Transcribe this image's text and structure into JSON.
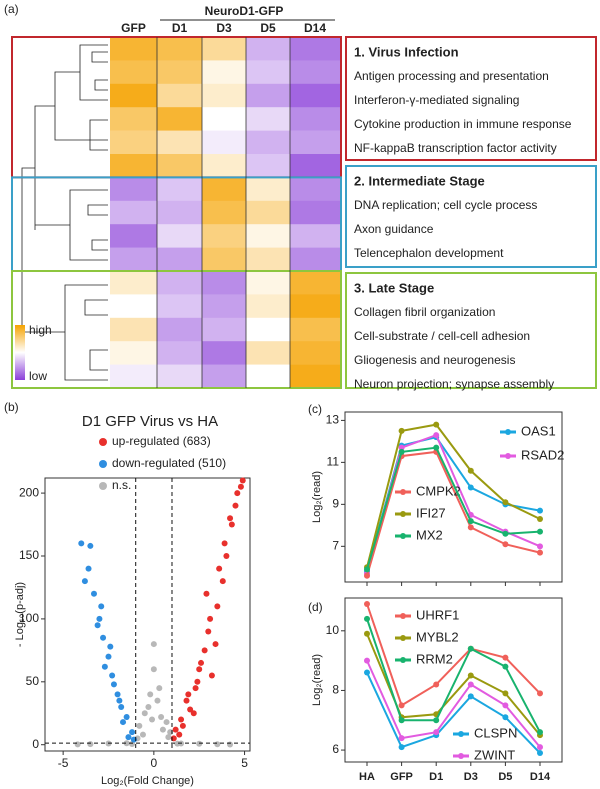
{
  "chart_data": [
    {
      "type": "heatmap",
      "panel_label": "(a)",
      "column_group": "NeuroD1-GFP",
      "columns": [
        "GFP",
        "D1",
        "D3",
        "D5",
        "D14"
      ],
      "legend": {
        "high": "high",
        "low": "low"
      },
      "colors": {
        "high": "#f5a300",
        "mid": "#ffffff",
        "low": "#8b3fd9"
      },
      "groups": [
        {
          "color": "#c1272d",
          "title": "1. Virus Infection",
          "terms": [
            "Antigen processing and presentation",
            "Interferon-γ-mediated signaling",
            "Cytokine production in immune response",
            "NF-kappaB transcription factor activity"
          ],
          "values": [
            [
              0.9,
              0.85,
              0.7,
              0.3,
              0.15
            ],
            [
              0.85,
              0.8,
              0.55,
              0.35,
              0.2
            ],
            [
              0.95,
              0.7,
              0.6,
              0.25,
              0.1
            ],
            [
              0.8,
              0.9,
              0.5,
              0.4,
              0.2
            ],
            [
              0.75,
              0.65,
              0.45,
              0.3,
              0.25
            ],
            [
              0.9,
              0.8,
              0.6,
              0.35,
              0.1
            ]
          ]
        },
        {
          "color": "#3aa0c8",
          "title": "2. Intermediate Stage",
          "terms": [
            "DNA replication; cell cycle process",
            "Axon guidance",
            "Telencephalon development"
          ],
          "values": [
            [
              0.2,
              0.35,
              0.9,
              0.6,
              0.2
            ],
            [
              0.3,
              0.3,
              0.85,
              0.7,
              0.15
            ],
            [
              0.15,
              0.4,
              0.75,
              0.55,
              0.3
            ],
            [
              0.25,
              0.25,
              0.8,
              0.65,
              0.2
            ]
          ]
        },
        {
          "color": "#8dc63f",
          "title": "3. Late Stage",
          "terms": [
            "Collagen fibril organization",
            "Cell-substrate / cell-cell adhesion",
            "Gliogenesis and neurogenesis",
            "Neuron projection; synapse assembly"
          ],
          "values": [
            [
              0.6,
              0.3,
              0.2,
              0.55,
              0.9
            ],
            [
              0.5,
              0.35,
              0.25,
              0.6,
              0.95
            ],
            [
              0.65,
              0.25,
              0.3,
              0.5,
              0.85
            ],
            [
              0.55,
              0.3,
              0.15,
              0.65,
              0.9
            ],
            [
              0.45,
              0.4,
              0.25,
              0.5,
              0.95
            ]
          ]
        }
      ]
    },
    {
      "type": "scatter",
      "panel_label": "(b)",
      "title": "D1 GFP Virus vs HA",
      "x_label": "Log₂(Fold Change)",
      "y_label": "- Log₁₀(p-adj)",
      "xlim": [
        -6,
        5.3
      ],
      "xticks": [
        -5,
        0,
        5
      ],
      "ylim": [
        -5,
        212
      ],
      "yticks": [
        0,
        50,
        100,
        150,
        200
      ],
      "thresholds": {
        "x": [
          -1,
          1
        ],
        "y": 1.3
      },
      "series": [
        {
          "name": "up-regulated (683)",
          "color": "#e8302c",
          "x": [
            1.2,
            1.5,
            1.8,
            2.0,
            2.3,
            2.5,
            2.8,
            3.0,
            3.2,
            3.5,
            3.8,
            4.0,
            4.3,
            4.6,
            4.9,
            1.4,
            1.9,
            2.2,
            2.6,
            3.1,
            3.4,
            3.9,
            4.5,
            1.1,
            1.6,
            2.4,
            2.9,
            3.6,
            4.2,
            4.8
          ],
          "values": [
            12,
            20,
            35,
            28,
            45,
            60,
            75,
            90,
            55,
            110,
            130,
            150,
            175,
            200,
            210,
            8,
            40,
            25,
            65,
            100,
            80,
            160,
            190,
            5,
            15,
            50,
            120,
            140,
            180,
            205
          ]
        },
        {
          "name": "down-regulated (510)",
          "color": "#2f8ee0",
          "x": [
            -1.2,
            -1.5,
            -1.8,
            -2.0,
            -2.3,
            -2.5,
            -2.8,
            -3.0,
            -3.3,
            -3.6,
            -4.0,
            -1.4,
            -1.9,
            -2.2,
            -2.7,
            -3.1,
            -3.5,
            -1.1,
            -1.7,
            -2.4,
            -2.9,
            -3.8
          ],
          "values": [
            10,
            22,
            30,
            40,
            55,
            70,
            85,
            100,
            120,
            140,
            160,
            6,
            35,
            48,
            62,
            95,
            158,
            4,
            18,
            78,
            110,
            130
          ]
        },
        {
          "name": "n.s.",
          "color": "#b8b8b8",
          "x": [
            -3.5,
            -2.5,
            -1.5,
            -0.8,
            -0.5,
            -0.2,
            0,
            0.2,
            0.4,
            0.7,
            0.9,
            1.5,
            2.5,
            3.5,
            -0.6,
            0.5,
            -0.9,
            0.8,
            -0.3,
            0.3,
            -4.2,
            4.2,
            -1.2,
            1.3,
            0,
            -0.1
          ],
          "values": [
            0.5,
            1,
            1.2,
            15,
            25,
            40,
            60,
            35,
            22,
            18,
            10,
            1,
            0.8,
            0.4,
            8,
            12,
            5,
            6,
            30,
            45,
            0.3,
            0.2,
            0.6,
            0.9,
            80,
            20
          ]
        }
      ]
    },
    {
      "type": "line",
      "panel_label": "(c)",
      "y_label": "Log₂(read)",
      "categories": [
        null,
        null,
        null,
        null,
        null,
        null
      ],
      "ylim": [
        5.3,
        13.4
      ],
      "yticks": [
        7,
        9,
        11,
        13
      ],
      "series": [
        {
          "name": "OAS1",
          "color": "#1ba7e0",
          "values": [
            5.8,
            11.8,
            12.2,
            9.8,
            9.0,
            8.7
          ]
        },
        {
          "name": "RSAD2",
          "color": "#e25be0",
          "values": [
            5.7,
            11.7,
            12.3,
            8.5,
            7.7,
            7.0
          ]
        },
        {
          "name": "CMPK2",
          "color": "#f0605a",
          "values": [
            5.6,
            11.3,
            11.5,
            7.9,
            7.1,
            6.7
          ]
        },
        {
          "name": "IFI27",
          "color": "#9a9a10",
          "values": [
            6.0,
            12.5,
            12.8,
            10.6,
            9.1,
            8.3
          ]
        },
        {
          "name": "MX2",
          "color": "#18b36e",
          "values": [
            5.9,
            11.5,
            11.7,
            8.2,
            7.6,
            7.7
          ]
        }
      ]
    },
    {
      "type": "line",
      "panel_label": "(d)",
      "y_label": "Log₂(read)",
      "categories": [
        "HA",
        "GFP",
        "D1",
        "D3",
        "D5",
        "D14"
      ],
      "ylim": [
        5.6,
        11.1
      ],
      "yticks": [
        6,
        8,
        10
      ],
      "series": [
        {
          "name": "UHRF1",
          "color": "#f0605a",
          "values": [
            10.9,
            7.5,
            8.2,
            9.4,
            9.1,
            7.9
          ]
        },
        {
          "name": "MYBL2",
          "color": "#9a9a10",
          "values": [
            9.9,
            7.1,
            7.2,
            8.5,
            7.9,
            6.5
          ]
        },
        {
          "name": "RRM2",
          "color": "#18b36e",
          "values": [
            10.4,
            7.0,
            7.0,
            9.4,
            8.8,
            6.6
          ]
        },
        {
          "name": "CLSPN",
          "color": "#1ba7e0",
          "values": [
            8.6,
            6.1,
            6.5,
            7.8,
            7.1,
            5.9
          ]
        },
        {
          "name": "ZWINT",
          "color": "#e25be0",
          "values": [
            9.0,
            6.4,
            6.6,
            8.2,
            7.5,
            6.1
          ]
        }
      ]
    }
  ]
}
